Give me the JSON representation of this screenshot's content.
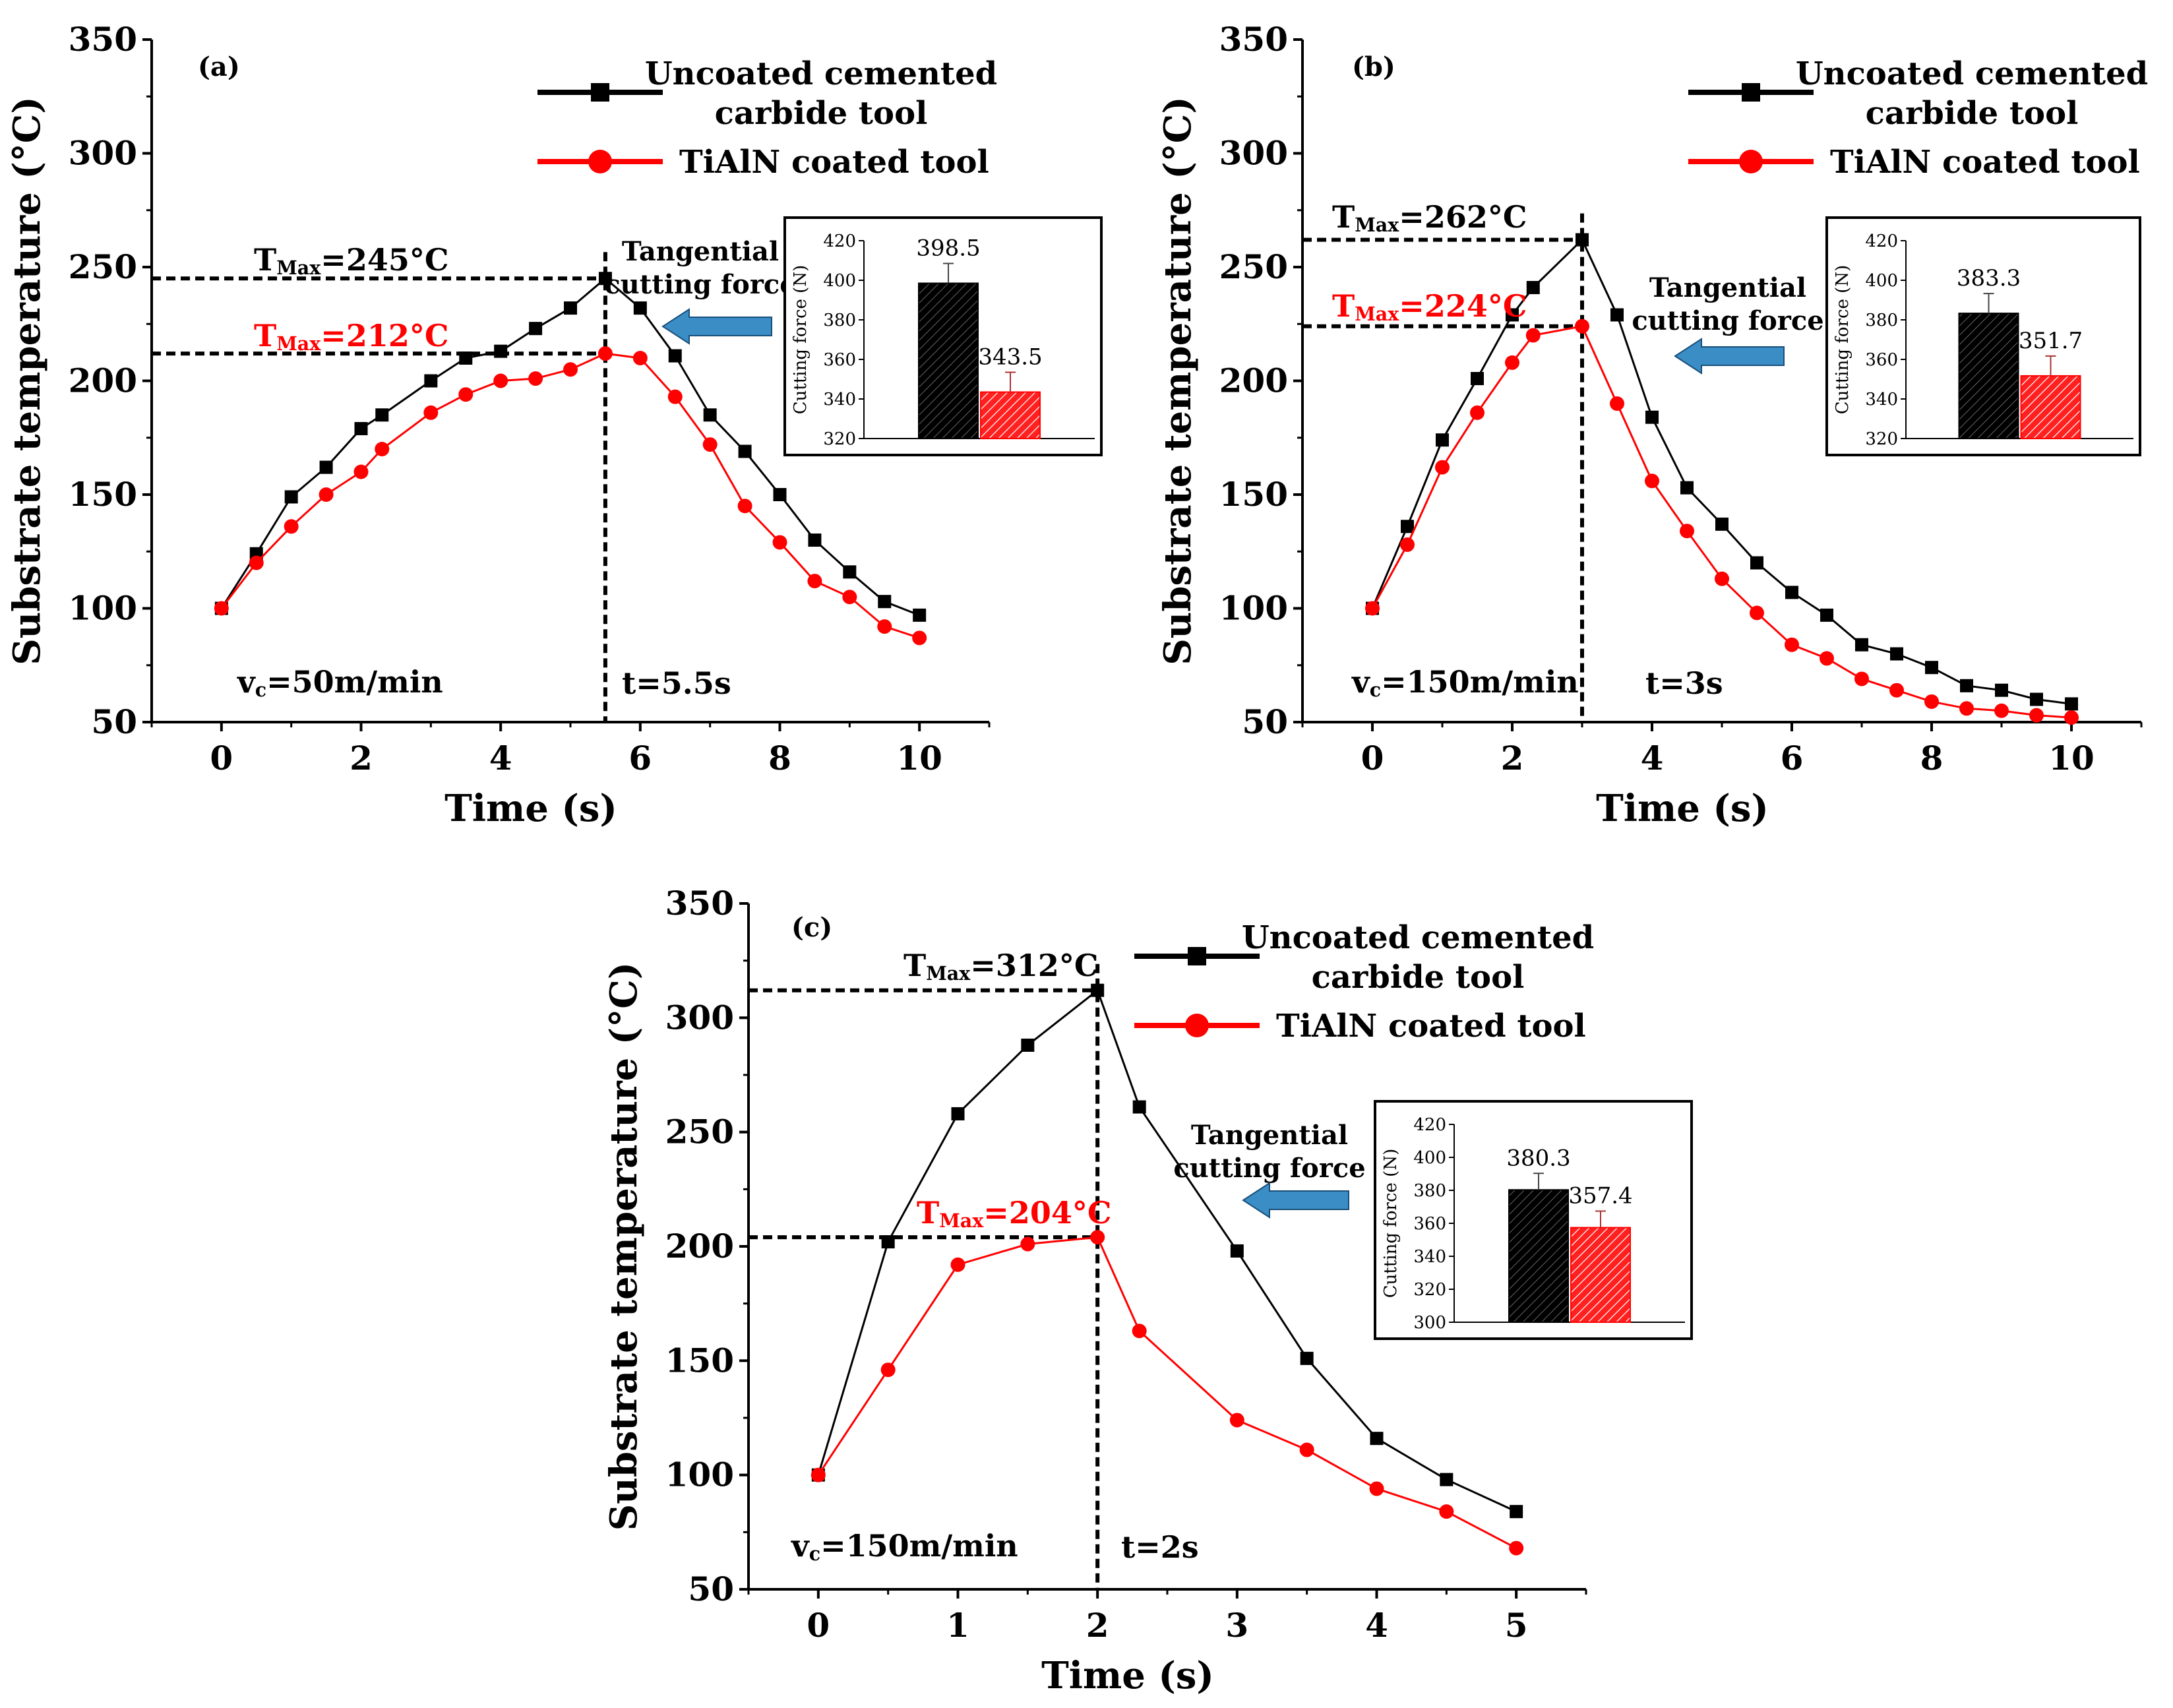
{
  "colors": {
    "uncoated": "#000000",
    "coated": "#ff0000",
    "arrow": "#3a8dc5",
    "arrow_stroke": "#1a4f7a"
  },
  "chart_data": [
    {
      "type": "line",
      "panel_label": "(a)",
      "xlabel": "Time (s)",
      "ylabel": "Substrate temperature (°C)",
      "xlim": [
        -1,
        11
      ],
      "ylim": [
        50,
        350
      ],
      "xticks": [
        0,
        2,
        4,
        6,
        8,
        10
      ],
      "yticks": [
        50,
        100,
        150,
        200,
        250,
        300,
        350
      ],
      "series": [
        {
          "name": "Uncoated cemented carbide tool",
          "legend_line1": "Uncoated cemented",
          "legend_line2": "carbide tool",
          "x": [
            0,
            0.5,
            1,
            1.5,
            2,
            2.3,
            3,
            3.5,
            4,
            4.5,
            5,
            5.5,
            6,
            6.5,
            7,
            7.5,
            8,
            8.5,
            9,
            9.5,
            10
          ],
          "y": [
            100,
            124,
            149,
            162,
            179,
            185,
            200,
            210,
            213,
            223,
            232,
            245,
            232,
            211,
            185,
            169,
            150,
            130,
            116,
            103,
            97
          ]
        },
        {
          "name": "TiAlN coated tool",
          "legend_line1": "TiAlN coated tool",
          "x": [
            0,
            0.5,
            1,
            1.5,
            2,
            2.3,
            3,
            3.5,
            4,
            4.5,
            5,
            5.5,
            6,
            6.5,
            7,
            7.5,
            8,
            8.5,
            9,
            9.5,
            10
          ],
          "y": [
            100,
            120,
            136,
            150,
            160,
            170,
            186,
            194,
            200,
            201,
            205,
            212,
            210,
            193,
            172,
            145,
            129,
            112,
            105,
            92,
            87
          ]
        }
      ],
      "tmax_black": {
        "prefix": "T",
        "sub": "Max",
        "rest": "=245°C",
        "value": 245
      },
      "tmax_red": {
        "prefix": "T",
        "sub": "Max",
        "rest": "=212°C",
        "value": 212
      },
      "vline_x": 5.5,
      "speed": {
        "prefix": "v",
        "sub": "c",
        "rest": "=50m/min"
      },
      "time_label": "t=5.5s",
      "tangential_line1": "Tangential",
      "tangential_line2": "cutting force",
      "inset": {
        "ylabel": "Cutting force (N)",
        "ylim": [
          320,
          420
        ],
        "yticks": [
          320,
          340,
          360,
          380,
          400,
          420
        ],
        "values": [
          398.5,
          343.5
        ],
        "errors": [
          10,
          10
        ],
        "labels": [
          "398.5",
          "343.5"
        ]
      }
    },
    {
      "type": "line",
      "panel_label": "(b)",
      "xlabel": "Time (s)",
      "ylabel": "Substrate temperature (°C)",
      "xlim": [
        -1,
        11
      ],
      "ylim": [
        50,
        350
      ],
      "xticks": [
        0,
        2,
        4,
        6,
        8,
        10
      ],
      "yticks": [
        50,
        100,
        150,
        200,
        250,
        300,
        350
      ],
      "series": [
        {
          "name": "Uncoated cemented carbide tool",
          "legend_line1": "Uncoated cemented",
          "legend_line2": "carbide tool",
          "x": [
            0,
            0.5,
            1,
            1.5,
            2,
            2.3,
            3,
            3.5,
            4,
            4.5,
            5,
            5.5,
            6,
            6.5,
            7,
            7.5,
            8,
            8.5,
            9,
            9.5,
            10
          ],
          "y": [
            100,
            136,
            174,
            201,
            229,
            241,
            262,
            229,
            184,
            153,
            137,
            120,
            107,
            97,
            84,
            80,
            74,
            66,
            64,
            60,
            58
          ]
        },
        {
          "name": "TiAlN coated tool",
          "legend_line1": "TiAlN coated tool",
          "x": [
            0,
            0.5,
            1,
            1.5,
            2,
            2.3,
            3,
            3.5,
            4,
            4.5,
            5,
            5.5,
            6,
            6.5,
            7,
            7.5,
            8,
            8.5,
            9,
            9.5,
            10
          ],
          "y": [
            100,
            128,
            162,
            186,
            208,
            220,
            224,
            190,
            156,
            134,
            113,
            98,
            84,
            78,
            69,
            64,
            59,
            56,
            55,
            53,
            52
          ]
        }
      ],
      "tmax_black": {
        "prefix": "T",
        "sub": "Max",
        "rest": "=262°C",
        "value": 262
      },
      "tmax_red": {
        "prefix": "T",
        "sub": "Max",
        "rest": "=224°C",
        "value": 224
      },
      "vline_x": 3,
      "speed": {
        "prefix": "v",
        "sub": "c",
        "rest": "=150m/min"
      },
      "time_label": "t=3s",
      "tangential_line1": "Tangential",
      "tangential_line2": "cutting force",
      "inset": {
        "ylabel": "Cutting force (N)",
        "ylim": [
          320,
          420
        ],
        "yticks": [
          320,
          340,
          360,
          380,
          400,
          420
        ],
        "values": [
          383.3,
          351.7
        ],
        "errors": [
          10,
          10
        ],
        "labels": [
          "383.3",
          "351.7"
        ]
      }
    },
    {
      "type": "line",
      "panel_label": "(c)",
      "xlabel": "Time (s)",
      "ylabel": "Substrate temperature (°C)",
      "xlim": [
        -0.5,
        5.5
      ],
      "ylim": [
        50,
        350
      ],
      "xticks": [
        0,
        1,
        2,
        3,
        4,
        5
      ],
      "yticks": [
        50,
        100,
        150,
        200,
        250,
        300,
        350
      ],
      "series": [
        {
          "name": "Uncoated cemented carbide tool",
          "legend_line1": "Uncoated cemented",
          "legend_line2": "carbide tool",
          "x": [
            0,
            0.5,
            1,
            1.5,
            2,
            2.3,
            3,
            3.5,
            4,
            4.5,
            5
          ],
          "y": [
            100,
            202,
            258,
            288,
            312,
            261,
            198,
            151,
            116,
            98,
            84
          ]
        },
        {
          "name": "TiAlN coated tool",
          "legend_line1": "TiAlN coated tool",
          "x": [
            0,
            0.5,
            1,
            1.5,
            2,
            2.3,
            3,
            3.5,
            4,
            4.5,
            5
          ],
          "y": [
            100,
            146,
            192,
            201,
            204,
            163,
            124,
            111,
            94,
            84,
            68
          ]
        }
      ],
      "tmax_black": {
        "prefix": "T",
        "sub": "Max",
        "rest": "=312°C",
        "value": 312
      },
      "tmax_red": {
        "prefix": "T",
        "sub": "Max",
        "rest": "=204°C",
        "value": 204
      },
      "vline_x": 2,
      "speed": {
        "prefix": "v",
        "sub": "c",
        "rest": "=150m/min"
      },
      "time_label": "t=2s",
      "tangential_line1": "Tangential",
      "tangential_line2": "cutting force",
      "inset": {
        "ylabel": "Cutting force (N)",
        "ylim": [
          300,
          420
        ],
        "yticks": [
          300,
          320,
          340,
          360,
          380,
          400,
          420
        ],
        "values": [
          380.3,
          357.4
        ],
        "errors": [
          10,
          10
        ],
        "labels": [
          "380.3",
          "357.4"
        ]
      }
    }
  ]
}
